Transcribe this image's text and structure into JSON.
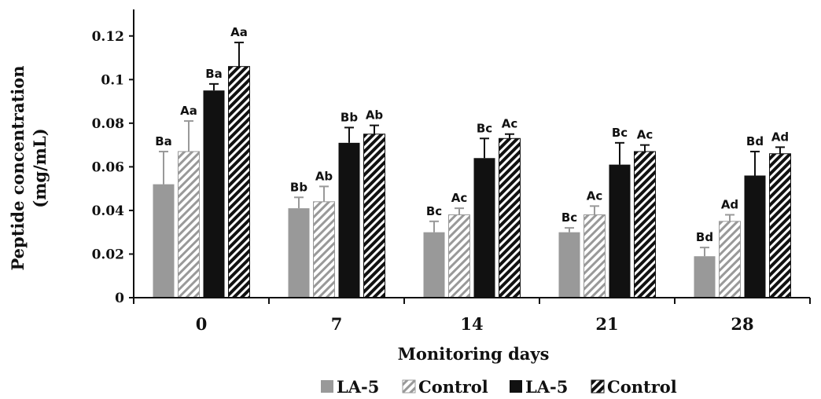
{
  "chart_data": {
    "type": "bar",
    "xlabel": "Monitoring days",
    "ylabel": "Peptide concentration (mg/mL)",
    "ylabel_lines": [
      "Peptide concentration",
      "(mg/mL)"
    ],
    "categories": [
      "0",
      "7",
      "14",
      "21",
      "28"
    ],
    "ylim": [
      0,
      0.13
    ],
    "yticks": [
      0,
      0.02,
      0.04,
      0.06,
      0.08,
      0.1,
      0.12
    ],
    "ytick_labels": [
      "0",
      "0.02",
      "0.04",
      "0.06",
      "0.08",
      "0.1",
      "0.12"
    ],
    "grid": false,
    "legend_position": "bottom",
    "series": [
      {
        "name": "LA-5",
        "style": "solid",
        "color": "#999999",
        "values": [
          0.052,
          0.041,
          0.03,
          0.03,
          0.019
        ],
        "errors": [
          0.015,
          0.005,
          0.005,
          0.002,
          0.004
        ],
        "labels": [
          "Ba",
          "Bb",
          "Bc",
          "Bc",
          "Bd"
        ]
      },
      {
        "name": "Control",
        "style": "hatched",
        "color": "#999999",
        "values": [
          0.067,
          0.044,
          0.038,
          0.038,
          0.035
        ],
        "errors": [
          0.014,
          0.007,
          0.003,
          0.004,
          0.003
        ],
        "labels": [
          "Aa",
          "Ab",
          "Ac",
          "Ac",
          "Ad"
        ]
      },
      {
        "name": "LA-5",
        "style": "solid",
        "color": "#111111",
        "values": [
          0.095,
          0.071,
          0.064,
          0.061,
          0.056
        ],
        "errors": [
          0.003,
          0.007,
          0.009,
          0.01,
          0.011
        ],
        "labels": [
          "Ba",
          "Bb",
          "Bc",
          "Bc",
          "Bd"
        ]
      },
      {
        "name": "Control",
        "style": "hatched",
        "color": "#111111",
        "values": [
          0.106,
          0.075,
          0.073,
          0.067,
          0.066
        ],
        "errors": [
          0.011,
          0.004,
          0.002,
          0.003,
          0.003
        ],
        "labels": [
          "Aa",
          "Ab",
          "Ac",
          "Ac",
          "Ad"
        ]
      }
    ]
  }
}
